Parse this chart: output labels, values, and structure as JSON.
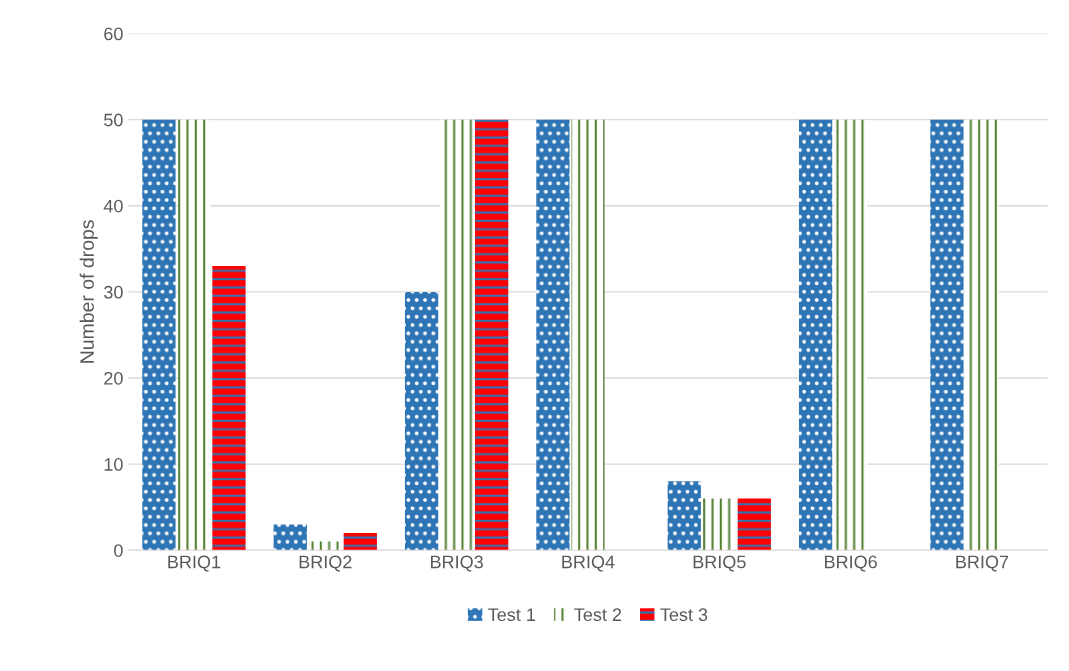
{
  "chart_data": {
    "type": "bar",
    "ylabel": "Number of drops",
    "categories": [
      "BRIQ1",
      "BRIQ2",
      "BRIQ3",
      "BRIQ4",
      "BRIQ5",
      "BRIQ6",
      "BRIQ7"
    ],
    "series": [
      {
        "name": "Test 1",
        "color": "#2e75b6",
        "values": [
          50,
          3,
          30,
          50,
          8,
          50,
          50
        ]
      },
      {
        "name": "Test 2",
        "color": "#548235",
        "values": [
          50,
          1,
          50,
          50,
          6,
          50,
          50
        ]
      },
      {
        "name": "Test 3",
        "color": "#ff0000",
        "values": [
          33,
          2,
          50,
          null,
          6,
          null,
          null
        ]
      }
    ],
    "ylim": [
      0,
      60
    ],
    "yticks": [
      0,
      10,
      20,
      30,
      40,
      50,
      60
    ],
    "grid": "y",
    "legend": "bottom"
  }
}
